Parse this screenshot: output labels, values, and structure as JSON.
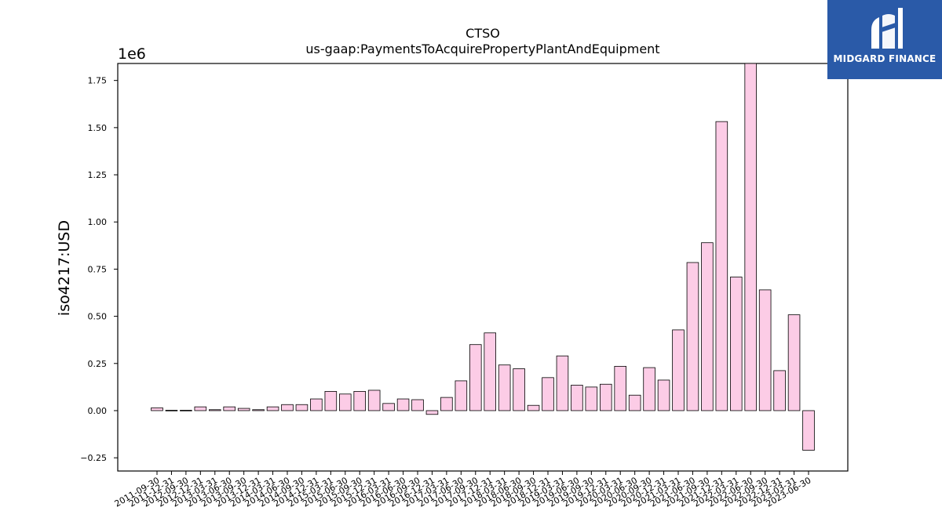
{
  "logo": {
    "text": "MIDGARD FINANCE"
  },
  "chart_data": {
    "type": "bar",
    "title": "CTSO",
    "subtitle": "us-gaap:PaymentsToAcquirePropertyPlantAndEquipment",
    "ylabel": "iso4217:USD",
    "xlabel": "",
    "scale_label": "1e6",
    "ylim": [
      -0.32,
      1.84
    ],
    "yticks": [
      -0.25,
      0.0,
      0.25,
      0.5,
      0.75,
      1.0,
      1.25,
      1.5,
      1.75
    ],
    "ytick_labels": [
      "−0.25",
      "0.00",
      "0.25",
      "0.50",
      "0.75",
      "1.00",
      "1.25",
      "1.50",
      "1.75"
    ],
    "bar_color": "#fccce6",
    "edge_color": "#000000",
    "grid": false,
    "categories": [
      "2011-09-30",
      "2011-12-31",
      "2012-09-30",
      "2012-12-31",
      "2013-03-31",
      "2013-06-30",
      "2013-09-30",
      "2013-12-31",
      "2014-03-31",
      "2014-06-30",
      "2014-09-30",
      "2014-12-31",
      "2015-03-31",
      "2015-06-30",
      "2015-09-30",
      "2015-12-31",
      "2016-03-31",
      "2016-06-30",
      "2016-09-30",
      "2016-12-31",
      "2017-03-31",
      "2017-06-30",
      "2017-09-30",
      "2017-12-31",
      "2018-03-31",
      "2018-06-30",
      "2018-09-30",
      "2018-12-31",
      "2019-03-31",
      "2019-06-30",
      "2019-09-30",
      "2019-12-31",
      "2020-03-31",
      "2020-06-30",
      "2020-09-30",
      "2020-12-31",
      "2021-03-31",
      "2021-06-30",
      "2021-09-30",
      "2021-12-31",
      "2022-03-31",
      "2022-06-30",
      "2022-09-30",
      "2022-12-31",
      "2023-03-31",
      "2023-06-30"
    ],
    "values": [
      0.015,
      0.002,
      0.002,
      0.02,
      0.005,
      0.02,
      0.012,
      0.005,
      0.02,
      0.032,
      0.032,
      0.062,
      0.102,
      0.088,
      0.102,
      0.108,
      0.038,
      0.062,
      0.058,
      -0.02,
      0.07,
      0.158,
      0.35,
      0.412,
      0.242,
      0.222,
      0.028,
      0.175,
      0.29,
      0.135,
      0.125,
      0.14,
      0.235,
      0.082,
      0.228,
      0.162,
      0.428,
      0.785,
      0.89,
      1.532,
      0.708,
      1.84,
      0.64,
      0.212,
      0.508,
      -0.21
    ]
  }
}
